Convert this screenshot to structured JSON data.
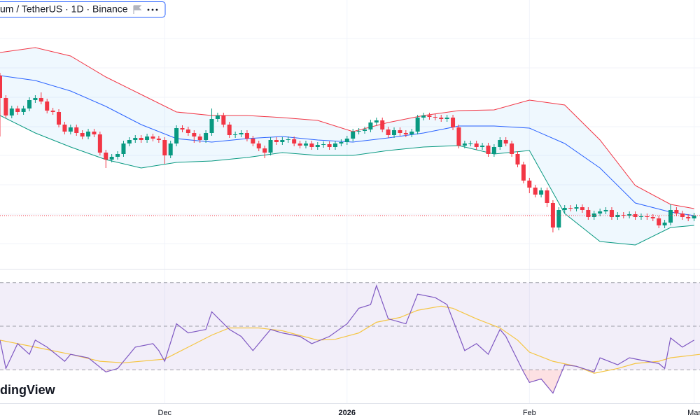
{
  "header": {
    "symbol": "um / TetherUS · 1D · Binance"
  },
  "watermark": "dingView",
  "chart_data": [
    {
      "type": "candlestick",
      "x": [
        0,
        1,
        2,
        3,
        4,
        5,
        6,
        7,
        8,
        9,
        10,
        11,
        12,
        13,
        14,
        15,
        16,
        17,
        18,
        19,
        20,
        21,
        22,
        23,
        24,
        25,
        26,
        27,
        28,
        29,
        30,
        31,
        32,
        33,
        34,
        35,
        36,
        37,
        38,
        39,
        40,
        41,
        42,
        43,
        44,
        45,
        46,
        47,
        48,
        49,
        50,
        51,
        52,
        53,
        54,
        55,
        56,
        57,
        58,
        59,
        60,
        61,
        62,
        63,
        64,
        65,
        66,
        67,
        68,
        69,
        70,
        71,
        72,
        73,
        74,
        75,
        76,
        77,
        78,
        79,
        80,
        81,
        82,
        83,
        84,
        85,
        86,
        87,
        88,
        89,
        90,
        91,
        92,
        93,
        94,
        95,
        96,
        97,
        98,
        99,
        100,
        101,
        102,
        103,
        104,
        105,
        106,
        107,
        108,
        109,
        110,
        111,
        112,
        113,
        114,
        115,
        116,
        117,
        118
      ],
      "open": [
        292,
        260,
        235,
        245,
        240,
        245,
        257,
        260,
        255,
        242,
        240,
        222,
        212,
        218,
        210,
        205,
        212,
        208,
        182,
        172,
        176,
        180,
        195,
        200,
        203,
        200,
        205,
        202,
        200,
        178,
        195,
        217,
        215,
        210,
        205,
        200,
        210,
        230,
        235,
        222,
        207,
        208,
        210,
        202,
        195,
        188,
        182,
        200,
        197,
        200,
        201,
        195,
        192,
        195,
        190,
        193,
        194,
        190,
        195,
        197,
        202,
        212,
        213,
        215,
        225,
        228,
        215,
        207,
        214,
        210,
        208,
        212,
        232,
        235,
        233,
        232,
        230,
        232,
        218,
        192,
        195,
        195,
        190,
        192,
        180,
        190,
        200,
        195,
        180,
        165,
        142,
        132,
        122,
        128,
        110,
        75,
        100,
        103,
        102,
        104,
        100,
        90,
        95,
        98,
        100,
        90,
        93,
        92,
        94,
        90,
        91,
        90,
        88,
        78,
        82,
        100,
        95,
        90,
        88
      ],
      "high": [
        296,
        264,
        249,
        249,
        249,
        261,
        264,
        268,
        259,
        246,
        244,
        226,
        222,
        222,
        214,
        216,
        216,
        212,
        186,
        180,
        184,
        199,
        204,
        207,
        207,
        209,
        209,
        206,
        204,
        199,
        221,
        221,
        219,
        214,
        209,
        214,
        245,
        239,
        239,
        226,
        212,
        214,
        214,
        206,
        199,
        192,
        204,
        204,
        204,
        205,
        205,
        199,
        199,
        199,
        197,
        198,
        198,
        199,
        201,
        206,
        216,
        217,
        219,
        229,
        232,
        232,
        219,
        218,
        218,
        214,
        216,
        236,
        239,
        239,
        237,
        236,
        236,
        236,
        222,
        199,
        199,
        199,
        196,
        196,
        194,
        204,
        204,
        199,
        184,
        169,
        146,
        136,
        132,
        132,
        114,
        104,
        107,
        107,
        108,
        108,
        104,
        99,
        102,
        104,
        104,
        97,
        97,
        98,
        98,
        95,
        95,
        94,
        92,
        86,
        108,
        104,
        99,
        94,
        96
      ],
      "low": [
        205,
        231,
        231,
        236,
        236,
        241,
        253,
        251,
        238,
        236,
        218,
        208,
        208,
        206,
        201,
        201,
        204,
        178,
        160,
        168,
        172,
        176,
        191,
        196,
        196,
        196,
        198,
        196,
        166,
        174,
        191,
        211,
        206,
        196,
        196,
        196,
        206,
        226,
        218,
        203,
        203,
        204,
        198,
        191,
        184,
        174,
        178,
        193,
        193,
        196,
        191,
        188,
        188,
        186,
        186,
        189,
        186,
        186,
        191,
        193,
        198,
        208,
        209,
        211,
        221,
        211,
        203,
        203,
        206,
        204,
        204,
        208,
        228,
        229,
        228,
        226,
        226,
        214,
        188,
        188,
        191,
        186,
        186,
        176,
        176,
        186,
        191,
        176,
        161,
        138,
        124,
        118,
        118,
        104,
        68,
        71,
        96,
        98,
        98,
        96,
        86,
        86,
        91,
        94,
        86,
        86,
        88,
        88,
        86,
        86,
        86,
        84,
        74,
        74,
        78,
        91,
        86,
        84,
        84
      ],
      "close": [
        260,
        235,
        245,
        240,
        245,
        257,
        260,
        255,
        242,
        240,
        222,
        212,
        218,
        210,
        205,
        212,
        208,
        182,
        172,
        176,
        180,
        195,
        200,
        203,
        200,
        205,
        202,
        200,
        178,
        195,
        217,
        215,
        210,
        205,
        200,
        210,
        230,
        235,
        222,
        207,
        208,
        210,
        202,
        195,
        188,
        182,
        200,
        197,
        200,
        201,
        195,
        192,
        195,
        190,
        193,
        194,
        190,
        195,
        197,
        202,
        212,
        213,
        215,
        225,
        228,
        215,
        207,
        214,
        210,
        208,
        212,
        232,
        235,
        233,
        232,
        230,
        232,
        218,
        192,
        195,
        195,
        190,
        192,
        180,
        190,
        200,
        195,
        180,
        165,
        142,
        132,
        122,
        128,
        110,
        75,
        100,
        103,
        102,
        104,
        100,
        90,
        95,
        98,
        100,
        90,
        93,
        92,
        94,
        90,
        91,
        90,
        88,
        78,
        82,
        100,
        95,
        90,
        88,
        92
      ],
      "up_color": "#089981",
      "down_color": "#f23645",
      "xlim": [
        0,
        119
      ],
      "ylim": [
        17,
        400
      ],
      "last_price_color": "#f23645",
      "bands": {
        "x": [
          0,
          6,
          12,
          18,
          24,
          30,
          36,
          42,
          48,
          54,
          60,
          66,
          72,
          78,
          84,
          90,
          96,
          102,
          108,
          114,
          118
        ],
        "fill": "#2196f3",
        "series": [
          {
            "color": "#f23645",
            "values": [
              325,
              332,
              320,
              290,
              265,
              240,
              235,
              235,
              232,
              228,
              212,
              225,
              235,
              242,
              243,
              257,
              250,
              200,
              135,
              108,
              102
            ]
          },
          {
            "color": "#2962ff",
            "values": [
              292,
              285,
              270,
              248,
              222,
              202,
              197,
              202,
              205,
              200,
              197,
              203,
              210,
              220,
              220,
              217,
              195,
              160,
              110,
              97,
              92
            ]
          },
          {
            "color": "#089981",
            "values": [
              235,
              210,
              190,
              172,
              160,
              168,
              170,
              175,
              182,
              178,
              178,
              185,
              190,
              192,
              180,
              185,
              95,
              55,
              50,
              75,
              78
            ]
          }
        ]
      }
    },
    {
      "type": "line",
      "xlim": [
        0,
        119
      ],
      "ylim": [
        15,
        76
      ],
      "xticks": [
        {
          "value": 28,
          "label": "Dec"
        },
        {
          "value": 59,
          "label": "2026"
        },
        {
          "value": 90,
          "label": "Feb"
        },
        {
          "value": 118,
          "label": "Mar"
        }
      ],
      "levels": [
        70,
        50,
        30
      ],
      "band_color": "#7e57c2",
      "oversold_color": "#f23645",
      "series": [
        {
          "color": "#7e57c2",
          "x": [
            0,
            1,
            3,
            5,
            6,
            8,
            11,
            12,
            15,
            18,
            20,
            23,
            26,
            27,
            28,
            30,
            32,
            35,
            36,
            39,
            41,
            43,
            46,
            48,
            51,
            53,
            56,
            59,
            61,
            63,
            64,
            66,
            69,
            71,
            74,
            76,
            79,
            81,
            83,
            85,
            86,
            89,
            90,
            92,
            94,
            96,
            98,
            101,
            102,
            105,
            107,
            110,
            112,
            113,
            114,
            116,
            118
          ],
          "values": [
            43.6,
            30.6,
            42.0,
            37.1,
            43.6,
            40.4,
            33.9,
            37.1,
            35.5,
            29.0,
            30.6,
            40.4,
            42.0,
            38.8,
            33.9,
            51.1,
            46.9,
            48.5,
            56.6,
            48.5,
            45.3,
            38.8,
            48.5,
            46.9,
            45.3,
            42.0,
            45.3,
            51.1,
            58.2,
            59.9,
            68.6,
            53.4,
            51.1,
            64.7,
            63.1,
            59.9,
            38.8,
            42.0,
            37.1,
            48.5,
            45.3,
            29.0,
            24.2,
            25.8,
            19.3,
            32.3,
            31.6,
            29.0,
            35.5,
            32.3,
            35.5,
            33.9,
            32.9,
            30.6,
            44.6,
            40.4,
            43.6
          ]
        },
        {
          "color": "#f5c542",
          "x": [
            0,
            6,
            12,
            17,
            21,
            28,
            32,
            36,
            39,
            44,
            48,
            54,
            57,
            61,
            64,
            68,
            71,
            75,
            77,
            81,
            85,
            88,
            90,
            94,
            98,
            101,
            105,
            108,
            112,
            114,
            119
          ],
          "values": [
            43.6,
            40.4,
            37.1,
            33.9,
            33.2,
            34.9,
            40.4,
            45.9,
            49.2,
            49.2,
            47.9,
            43.6,
            44.0,
            46.9,
            51.8,
            54.0,
            57.3,
            59.2,
            58.2,
            53.4,
            49.2,
            43.6,
            38.1,
            33.9,
            31.6,
            28.4,
            30.6,
            32.9,
            33.9,
            35.5,
            37.1
          ]
        }
      ]
    }
  ]
}
